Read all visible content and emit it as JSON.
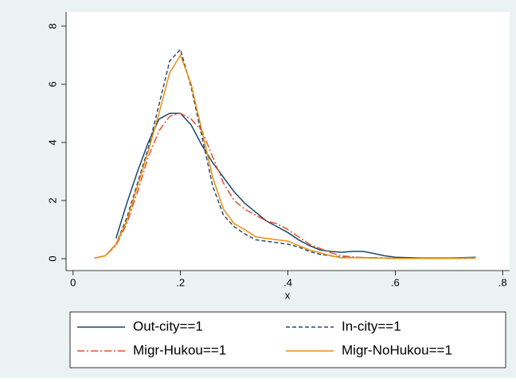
{
  "chart_data": {
    "type": "line",
    "x_label": "x",
    "x": [
      0.04,
      0.06,
      0.08,
      0.1,
      0.12,
      0.14,
      0.16,
      0.18,
      0.2,
      0.22,
      0.24,
      0.26,
      0.28,
      0.3,
      0.32,
      0.34,
      0.36,
      0.38,
      0.4,
      0.42,
      0.44,
      0.46,
      0.48,
      0.5,
      0.52,
      0.54,
      0.56,
      0.58,
      0.6,
      0.65,
      0.7,
      0.75
    ],
    "series": [
      {
        "name": "Out-city==1",
        "color": "#1a476f",
        "line_style": "solid",
        "values": [
          null,
          null,
          0.7,
          1.9,
          3.0,
          4.0,
          4.8,
          5.0,
          5.0,
          4.6,
          3.9,
          3.3,
          2.8,
          2.3,
          1.9,
          1.6,
          1.3,
          1.1,
          0.9,
          0.65,
          0.45,
          0.3,
          0.25,
          0.22,
          0.25,
          0.25,
          0.18,
          0.1,
          0.05,
          0.02,
          0.02,
          0.05
        ]
      },
      {
        "name": "In-city==1",
        "color": "#2d4b6e",
        "line_style": "dash",
        "values": [
          0.02,
          0.1,
          0.5,
          1.4,
          2.6,
          3.8,
          5.3,
          6.8,
          7.2,
          5.9,
          4.2,
          2.5,
          1.5,
          1.1,
          0.85,
          0.65,
          0.6,
          0.55,
          0.5,
          0.4,
          0.25,
          0.15,
          0.1,
          0.05,
          0.04,
          0.03,
          0.03,
          0.02,
          0.01,
          0.01,
          0.01,
          0.02
        ]
      },
      {
        "name": "Migr-Hukou==1",
        "color": "#e8512a",
        "line_style": "dashdot",
        "values": [
          0.02,
          0.1,
          0.45,
          1.2,
          2.3,
          3.5,
          4.4,
          4.9,
          5.0,
          4.8,
          4.4,
          3.5,
          2.6,
          2.0,
          1.7,
          1.5,
          1.3,
          1.2,
          1.0,
          0.75,
          0.5,
          0.35,
          0.2,
          0.1,
          0.06,
          0.04,
          0.03,
          0.02,
          0.01,
          0.01,
          0.01,
          0.02
        ]
      },
      {
        "name": "Migr-NoHukou==1",
        "color": "#e8900c",
        "line_style": "solid",
        "values": [
          0.02,
          0.1,
          0.5,
          1.3,
          2.5,
          3.7,
          5.0,
          6.4,
          7.0,
          6.0,
          4.4,
          2.8,
          1.7,
          1.2,
          1.0,
          0.75,
          0.7,
          0.65,
          0.6,
          0.45,
          0.3,
          0.2,
          0.1,
          0.03,
          0.03,
          0.03,
          0.02,
          0.02,
          0.01,
          0.01,
          0.01,
          0.03
        ]
      }
    ],
    "xlim": [
      -0.013,
      0.813
    ],
    "ylim": [
      -0.41,
      8.49
    ],
    "xticks": [
      0,
      {
        "value": 0.2,
        "label": ".2"
      },
      {
        "value": 0.4,
        "label": ".4"
      },
      {
        "value": 0.6,
        "label": ".6"
      },
      {
        "value": 0.8,
        "label": ".8"
      }
    ],
    "yticks": [
      0,
      2,
      4,
      6,
      8
    ],
    "grid": false
  }
}
